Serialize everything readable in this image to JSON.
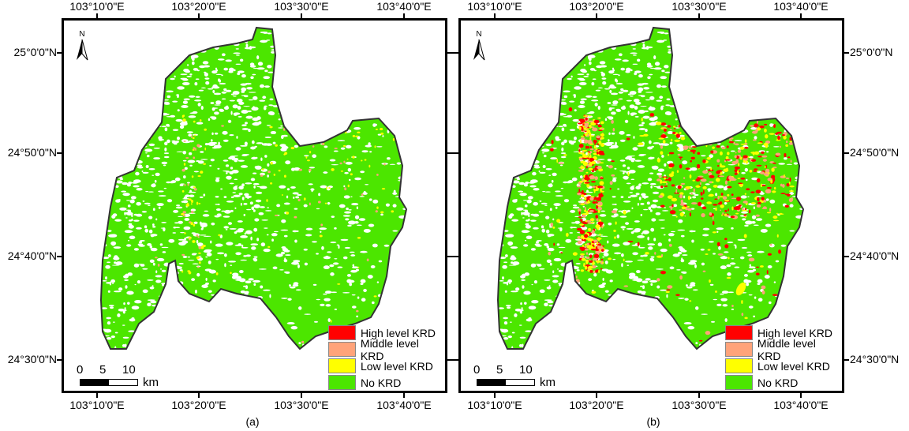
{
  "colors": {
    "high": "#ff0000",
    "middle": "#ffa37a",
    "low": "#ffff00",
    "none": "#4ce600",
    "outline": "#333333"
  },
  "lon_labels": [
    "103°10'0\"E",
    "103°20'0\"E",
    "103°30'0\"E",
    "103°40'0\"E"
  ],
  "lat_labels": [
    "25°0'0\"N",
    "24°50'0\"N",
    "24°40'0\"N",
    "24°30'0\"N"
  ],
  "legend": [
    "High level KRD",
    "Middle level KRD",
    "Low level KRD",
    "No KRD"
  ],
  "scale": {
    "ticks": [
      "0",
      "5",
      "10"
    ],
    "unit": "km"
  },
  "north_label": "N",
  "panels": [
    {
      "caption": "(a)"
    },
    {
      "caption": "(b)"
    }
  ]
}
